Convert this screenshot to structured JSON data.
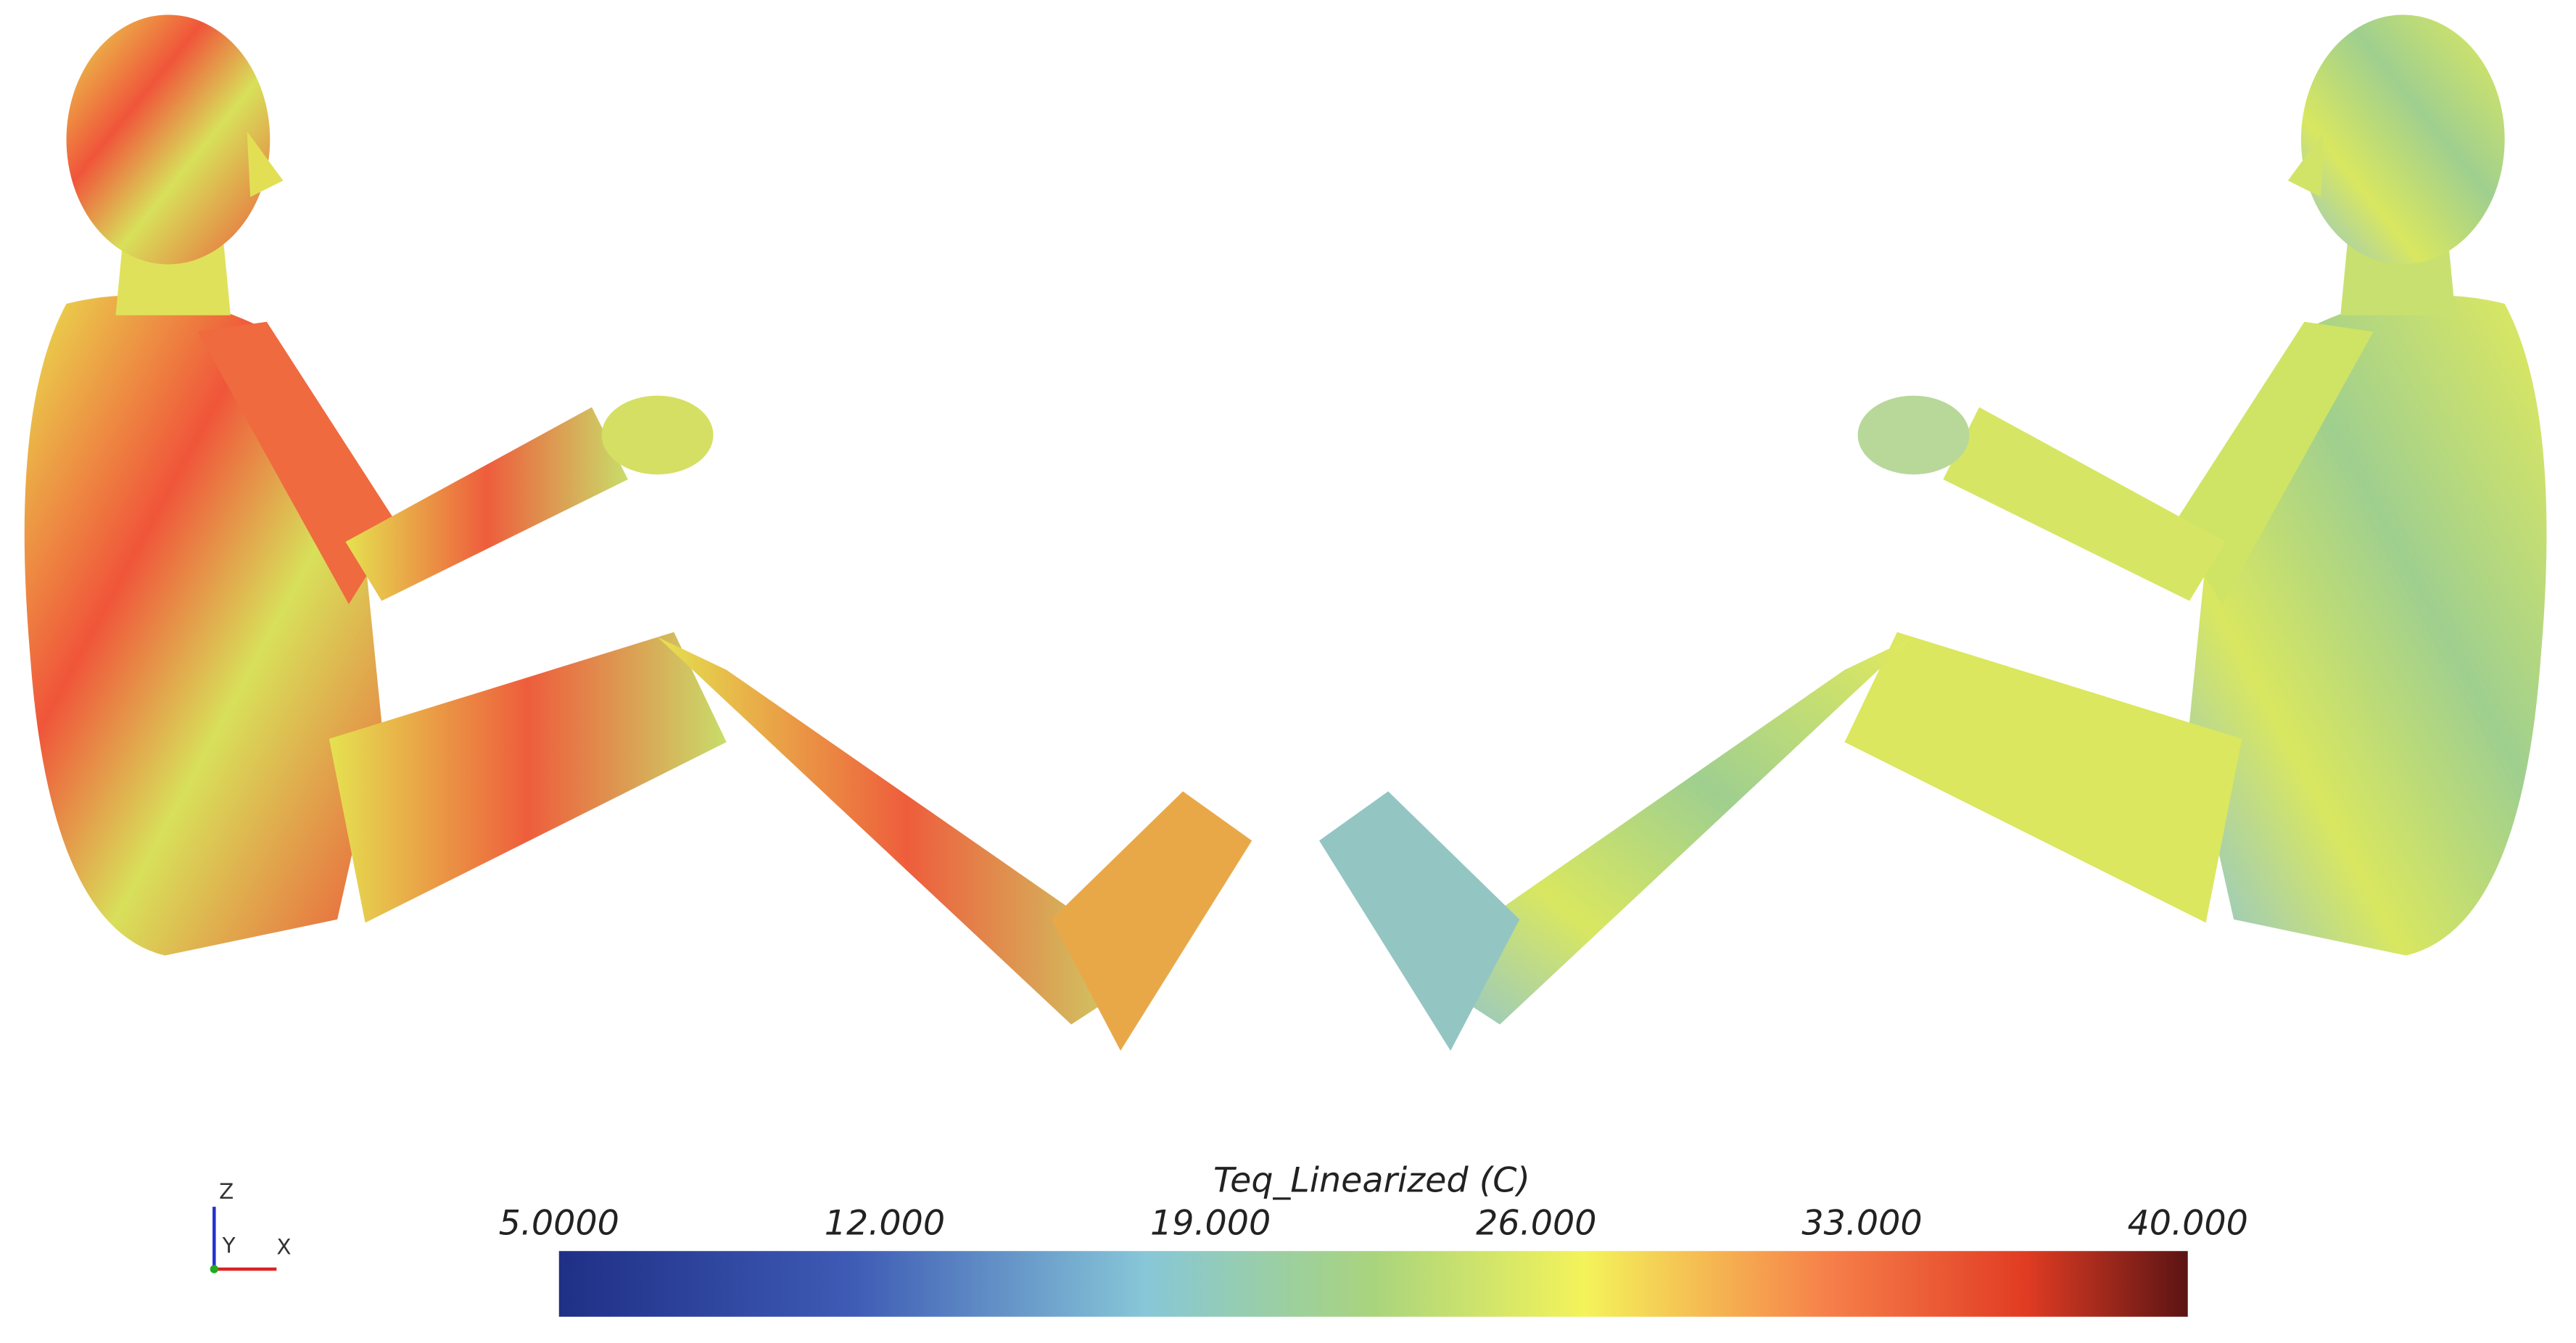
{
  "colorbar": {
    "title": "Teq_Linearized (C)",
    "range": [
      5,
      40
    ],
    "ticks": [
      {
        "value": 5,
        "label": "5.0000"
      },
      {
        "value": 12,
        "label": "12.000"
      },
      {
        "value": 19,
        "label": "19.000"
      },
      {
        "value": 26,
        "label": "26.000"
      },
      {
        "value": 33,
        "label": "33.000"
      },
      {
        "value": 40,
        "label": "40.000"
      }
    ]
  },
  "axes_triad": {
    "z": "Z",
    "y": "Y",
    "x": "X"
  }
}
